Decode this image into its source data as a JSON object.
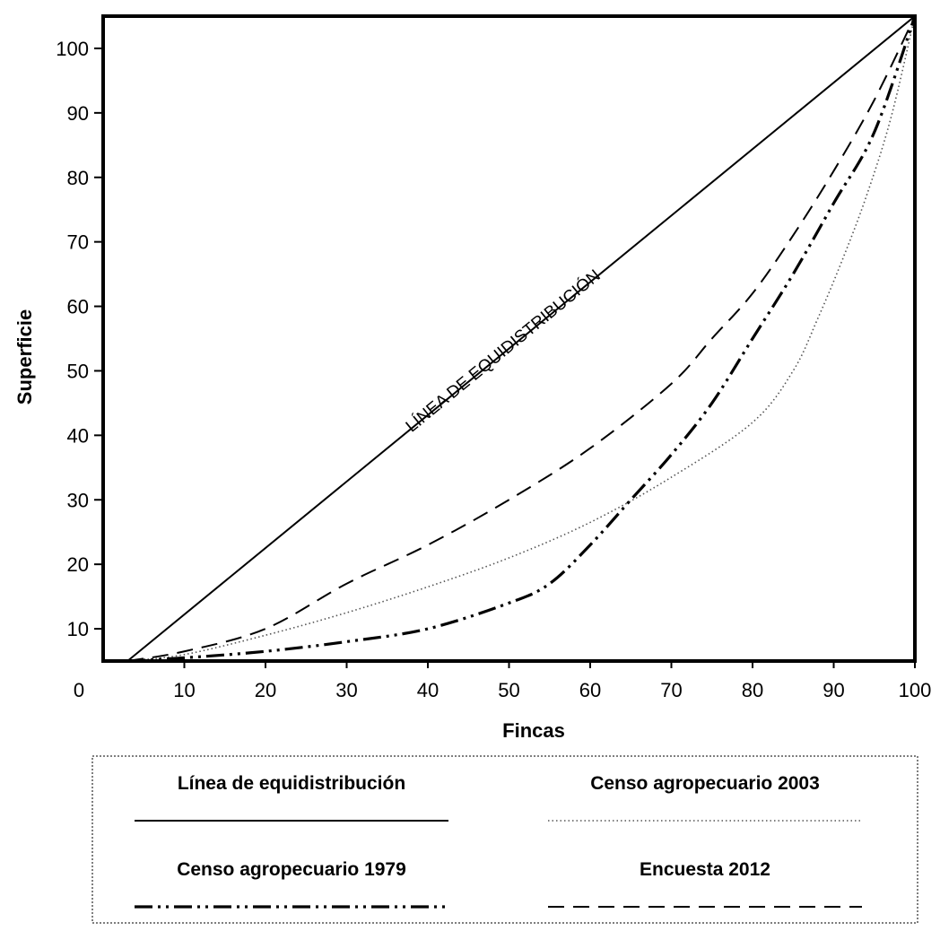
{
  "chart_data": {
    "type": "line",
    "xlabel": "Fincas",
    "ylabel": "Superficie",
    "xlim": [
      0,
      100
    ],
    "ylim": [
      5,
      105
    ],
    "x_ticks": [
      0,
      10,
      20,
      30,
      40,
      50,
      60,
      70,
      80,
      90,
      100
    ],
    "y_ticks": [
      10,
      20,
      30,
      40,
      50,
      60,
      70,
      80,
      90,
      100
    ],
    "annotation": "LÍNEA DE EQUIDISTRIBUCIÓN",
    "legend_placement": "bottom",
    "series": [
      {
        "name": "Línea de equidistribución",
        "style": "solid",
        "color": "#000000",
        "points": [
          [
            3,
            5
          ],
          [
            100,
            105
          ]
        ]
      },
      {
        "name": "Censo agropecuario 2003",
        "style": "dotted",
        "color": "#555555",
        "points": [
          [
            3,
            5
          ],
          [
            10,
            6
          ],
          [
            20,
            9
          ],
          [
            30,
            12.5
          ],
          [
            40,
            16.5
          ],
          [
            50,
            21
          ],
          [
            60,
            26.5
          ],
          [
            70,
            33.5
          ],
          [
            80,
            42
          ],
          [
            85,
            50
          ],
          [
            88,
            58
          ],
          [
            91,
            67
          ],
          [
            94,
            77
          ],
          [
            97,
            89
          ],
          [
            100,
            105
          ]
        ]
      },
      {
        "name": "Censo agropecuario 1979",
        "style": "dash-dot-dot",
        "color": "#000000",
        "points": [
          [
            3,
            5
          ],
          [
            10,
            5.5
          ],
          [
            20,
            6.5
          ],
          [
            30,
            8
          ],
          [
            40,
            10
          ],
          [
            50,
            14
          ],
          [
            55,
            17
          ],
          [
            60,
            23
          ],
          [
            65,
            30
          ],
          [
            70,
            37
          ],
          [
            75,
            45
          ],
          [
            80,
            55
          ],
          [
            85,
            65
          ],
          [
            90,
            76
          ],
          [
            95,
            87
          ],
          [
            100,
            105
          ]
        ]
      },
      {
        "name": "Encuesta 2012",
        "style": "dashed",
        "color": "#000000",
        "points": [
          [
            3,
            5
          ],
          [
            10,
            6.5
          ],
          [
            20,
            10
          ],
          [
            30,
            17
          ],
          [
            40,
            23
          ],
          [
            50,
            30
          ],
          [
            60,
            38
          ],
          [
            70,
            48
          ],
          [
            75,
            55
          ],
          [
            80,
            62
          ],
          [
            85,
            71
          ],
          [
            90,
            81
          ],
          [
            95,
            92
          ],
          [
            100,
            105
          ]
        ]
      }
    ]
  }
}
